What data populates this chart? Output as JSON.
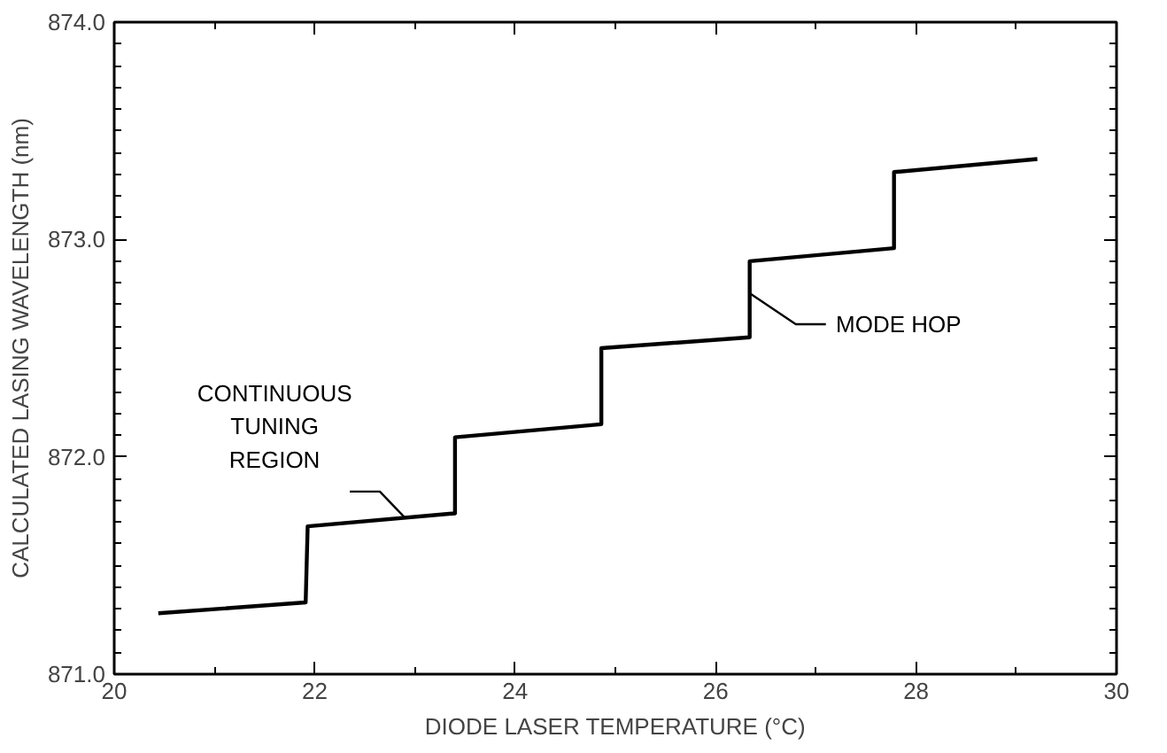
{
  "chart_data": {
    "type": "line",
    "xlabel": "DIODE LASER TEMPERATURE (°C)",
    "ylabel": "CALCULATED LASING WAVELENGTH (nm)",
    "x": [
      20.44,
      21.91,
      21.93,
      23.4,
      23.4,
      24.86,
      24.86,
      26.34,
      26.34,
      27.78,
      27.78,
      29.21
    ],
    "series": [
      {
        "color": "#000000",
        "values": [
          871.28,
          871.33,
          871.68,
          871.74,
          872.09,
          872.15,
          872.5,
          872.55,
          872.9,
          872.96,
          873.31,
          873.37
        ]
      }
    ],
    "xlim": [
      20,
      30
    ],
    "ylim": [
      871,
      874
    ],
    "xticks": [
      20,
      {
        "value": 21,
        "label": null
      },
      22,
      {
        "value": 23,
        "label": null
      },
      24,
      {
        "value": 25,
        "label": null
      },
      26,
      {
        "value": 27,
        "label": null
      },
      28,
      {
        "value": 29,
        "label": null
      },
      30
    ],
    "yticks": [
      {
        "value": 871,
        "label": "871.0"
      },
      {
        "value": 871.1,
        "label": null
      },
      {
        "value": 871.2,
        "label": null
      },
      {
        "value": 871.3,
        "label": null
      },
      {
        "value": 871.4,
        "label": null
      },
      {
        "value": 871.5,
        "label": null
      },
      {
        "value": 871.6,
        "label": null
      },
      {
        "value": 871.7,
        "label": null
      },
      {
        "value": 871.8,
        "label": null
      },
      {
        "value": 871.9,
        "label": null
      },
      {
        "value": 872,
        "label": "872.0"
      },
      {
        "value": 872.1,
        "label": null
      },
      {
        "value": 872.2,
        "label": null
      },
      {
        "value": 872.3,
        "label": null
      },
      {
        "value": 872.4,
        "label": null
      },
      {
        "value": 872.5,
        "label": null
      },
      {
        "value": 872.6,
        "label": null
      },
      {
        "value": 872.7,
        "label": null
      },
      {
        "value": 872.8,
        "label": null
      },
      {
        "value": 872.9,
        "label": null
      },
      {
        "value": 873,
        "label": "873.0"
      },
      {
        "value": 873.1,
        "label": null
      },
      {
        "value": 873.2,
        "label": null
      },
      {
        "value": 873.3,
        "label": null
      },
      {
        "value": 873.4,
        "label": null
      },
      {
        "value": 873.5,
        "label": null
      },
      {
        "value": 873.6,
        "label": null
      },
      {
        "value": 873.7,
        "label": null
      },
      {
        "value": 873.8,
        "label": null
      },
      {
        "value": 873.9,
        "label": null
      },
      {
        "value": 874,
        "label": "874.0"
      }
    ],
    "annotations": [
      {
        "text": "CONTINUOUS\nTUNING\nREGION",
        "x": 22.9,
        "y": 871.72
      },
      {
        "text": "MODE HOP",
        "x": 26.35,
        "y": 872.75
      }
    ],
    "grid": false,
    "marker": "none",
    "line_style": "solid"
  }
}
